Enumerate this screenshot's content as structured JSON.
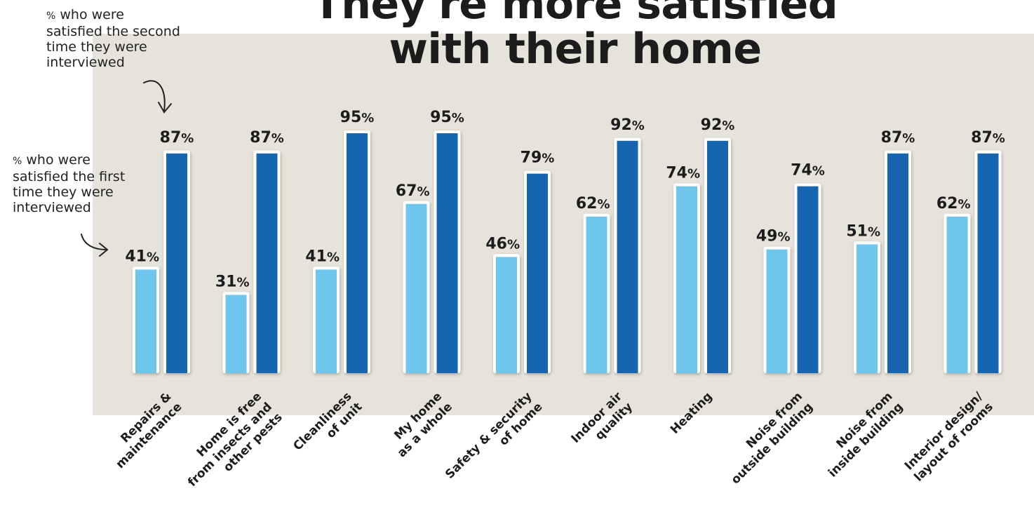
{
  "chart_data": {
    "type": "bar",
    "title": "They're more satisfied with their home",
    "title_lines": [
      "They're more satisfied",
      "with their home"
    ],
    "categories": [
      [
        "Repairs &",
        "maintenance"
      ],
      [
        "Home is free",
        "from insects and",
        "other pests"
      ],
      [
        "Cleanliness",
        "of unit"
      ],
      [
        "My home",
        "as a whole"
      ],
      [
        "Safety & security",
        "of home"
      ],
      [
        "Indoor air",
        "quality"
      ],
      [
        "Heating"
      ],
      [
        "Noise from",
        "outside building"
      ],
      [
        "Noise from",
        "inside building"
      ],
      [
        "Interior design/",
        "layout of rooms"
      ]
    ],
    "series": [
      {
        "values": [
          41,
          null,
          41,
          67,
          46,
          62,
          74,
          49,
          51,
          62
        ],
        "full_values": [
          41,
          31,
          41,
          67,
          46,
          62,
          74,
          49,
          51,
          62
        ],
        "color": "#6fc6ec"
      },
      {
        "values": [
          87,
          87,
          95,
          95,
          79,
          92,
          92,
          74,
          87,
          87
        ],
        "color": "#1565b0"
      }
    ],
    "value_suffix": "%",
    "ylim": [
      0,
      100
    ],
    "grid": false,
    "background": "#e6e3da"
  },
  "annotations": {
    "second": {
      "pct": "%",
      "lines": [
        "who were",
        "satisfied the second",
        "time they were",
        "interviewed"
      ]
    },
    "first": {
      "pct": "%",
      "lines": [
        "who were",
        "satisfied the first",
        "time they were",
        "interviewed"
      ]
    }
  }
}
